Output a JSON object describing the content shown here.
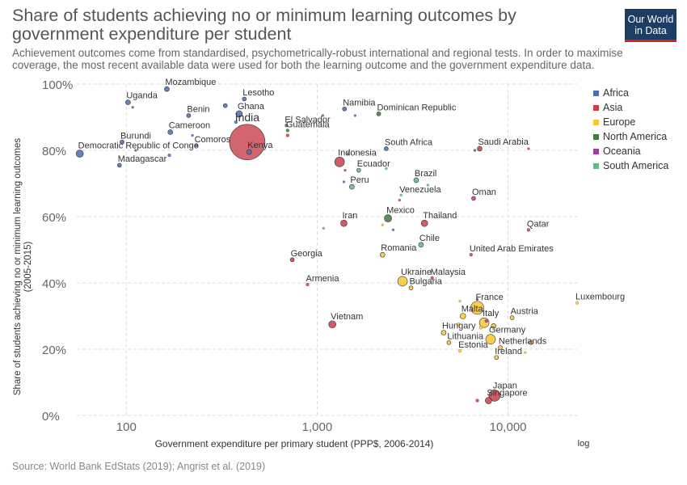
{
  "title": "Share of students achieving no or minimum learning outcomes by government expenditure per student",
  "subtitle": "Achievement outcomes come from standardised, psychometrically-robust international and regional tests. In order to maximise coverage, the most recent available data were used for both the learning outcome and the government expenditure data.",
  "logo": {
    "line1": "Our World",
    "line2": "in Data"
  },
  "source": "Source: World Bank EdStats (2019); Angrist et al. (2019)",
  "colors": {
    "Africa": "#4c6db3",
    "Asia": "#c83f4b",
    "Europe": "#f9c631",
    "North America": "#3e7c3e",
    "Oceania": "#a23aa0",
    "South America": "#5cbd8b"
  },
  "chart_data": {
    "type": "scatter",
    "xlabel": "Government expenditure per primary student (PPP$, 2006-2014)",
    "ylabel_line1": "Share of students achieving no or minimum learning outcomes",
    "ylabel_line2": "(2005-2015)",
    "x_scale": "log",
    "x_scale_label": "log",
    "xlim": [
      55,
      23000
    ],
    "ylim": [
      0,
      100
    ],
    "x_ticks": [
      {
        "v": 100,
        "label": "100"
      },
      {
        "v": 1000,
        "label": "1,000"
      },
      {
        "v": 10000,
        "label": "10,000"
      }
    ],
    "y_ticks": [
      {
        "v": 0,
        "label": "0%"
      },
      {
        "v": 20,
        "label": "20%"
      },
      {
        "v": 40,
        "label": "40%"
      },
      {
        "v": 60,
        "label": "60%"
      },
      {
        "v": 80,
        "label": "80%"
      },
      {
        "v": 100,
        "label": "100%"
      }
    ],
    "grid": true,
    "legend_position": "right",
    "legend": [
      "Africa",
      "Asia",
      "Europe",
      "North America",
      "Oceania",
      "South America"
    ],
    "points": [
      {
        "label": "Mozambique",
        "x": 163,
        "y": 98.5,
        "region": "Africa",
        "r": 3
      },
      {
        "label": "Uganda",
        "x": 102,
        "y": 94.5,
        "region": "Africa",
        "r": 3
      },
      {
        "label": "",
        "x": 108,
        "y": 93,
        "region": "Africa",
        "r": 1.5
      },
      {
        "label": "Lesotho",
        "x": 415,
        "y": 95.5,
        "region": "Africa",
        "r": 2.5
      },
      {
        "label": "Benin",
        "x": 212,
        "y": 90.5,
        "region": "Africa",
        "r": 2.5
      },
      {
        "label": "",
        "x": 330,
        "y": 93.5,
        "region": "Africa",
        "r": 2.5
      },
      {
        "label": "Ghana",
        "x": 390,
        "y": 91,
        "region": "Africa",
        "r": 4
      },
      {
        "label": "",
        "x": 375,
        "y": 88.5,
        "region": "Africa",
        "r": 2
      },
      {
        "label": "Cameroon",
        "x": 170,
        "y": 85.5,
        "region": "Africa",
        "r": 3
      },
      {
        "label": "",
        "x": 222,
        "y": 84.5,
        "region": "Africa",
        "r": 1.5
      },
      {
        "label": "Burundi",
        "x": 95,
        "y": 82.5,
        "region": "Africa",
        "r": 2.5
      },
      {
        "label": "Comoros",
        "x": 232,
        "y": 81.5,
        "region": "Africa",
        "r": 2
      },
      {
        "label": "",
        "x": 112,
        "y": 80,
        "region": "Africa",
        "r": 1.5
      },
      {
        "label": "Democratic Republic of Congo",
        "x": 57,
        "y": 79,
        "region": "Africa",
        "r": 4.5
      },
      {
        "label": "",
        "x": 168,
        "y": 78.5,
        "region": "Africa",
        "r": 2
      },
      {
        "label": "Madagascar",
        "x": 92,
        "y": 75.5,
        "region": "Africa",
        "r": 2.5
      },
      {
        "label": "Kenya",
        "x": 440,
        "y": 79.5,
        "region": "Africa",
        "r": 3
      },
      {
        "label": "Namibia",
        "x": 1390,
        "y": 92.5,
        "region": "Africa",
        "r": 2.5
      },
      {
        "label": "",
        "x": 1580,
        "y": 90.5,
        "region": "Africa",
        "r": 1.5
      },
      {
        "label": "",
        "x": 1070,
        "y": 90.5,
        "region": "Africa",
        "r": 1.5
      },
      {
        "label": "South Africa",
        "x": 2300,
        "y": 80.5,
        "region": "Africa",
        "r": 2.5
      },
      {
        "label": "",
        "x": 1450,
        "y": 79,
        "region": "Africa",
        "r": 1.5
      },
      {
        "label": "",
        "x": 1380,
        "y": 70.5,
        "region": "Africa",
        "r": 1.5
      },
      {
        "label": "",
        "x": 2500,
        "y": 56,
        "region": "Africa",
        "r": 1.5
      },
      {
        "label": "India",
        "x": 430,
        "y": 82.5,
        "region": "Asia",
        "r": 22
      },
      {
        "label": "Indonesia",
        "x": 1310,
        "y": 76.5,
        "region": "Asia",
        "r": 6
      },
      {
        "label": "",
        "x": 1400,
        "y": 74,
        "region": "Asia",
        "r": 1.5
      },
      {
        "label": "Saudi Arabia",
        "x": 7100,
        "y": 80.5,
        "region": "Asia",
        "r": 3
      },
      {
        "label": "",
        "x": 12800,
        "y": 80.5,
        "region": "Asia",
        "r": 1.5
      },
      {
        "label": "Oman",
        "x": 6600,
        "y": 65.5,
        "region": "Asia",
        "r": 2.5
      },
      {
        "label": "Iran",
        "x": 1380,
        "y": 58,
        "region": "Asia",
        "r": 4
      },
      {
        "label": "Thailand",
        "x": 3650,
        "y": 58,
        "region": "Asia",
        "r": 4
      },
      {
        "label": "Qatar",
        "x": 12800,
        "y": 56,
        "region": "Asia",
        "r": 2
      },
      {
        "label": "United Arab Emirates",
        "x": 6400,
        "y": 48.5,
        "region": "Asia",
        "r": 2
      },
      {
        "label": "Georgia",
        "x": 740,
        "y": 47,
        "region": "Asia",
        "r": 2.5
      },
      {
        "label": "Malaysia",
        "x": 4000,
        "y": 41.5,
        "region": "Asia",
        "r": 2
      },
      {
        "label": "Armenia",
        "x": 890,
        "y": 39.5,
        "region": "Asia",
        "r": 2
      },
      {
        "label": "Vietnam",
        "x": 1200,
        "y": 27.5,
        "region": "Asia",
        "r": 4.5
      },
      {
        "label": "Japan",
        "x": 8500,
        "y": 6,
        "region": "Asia",
        "r": 7
      },
      {
        "label": "Singapore",
        "x": 7900,
        "y": 4.5,
        "region": "Asia",
        "r": 4
      },
      {
        "label": "",
        "x": 6900,
        "y": 4.5,
        "region": "Asia",
        "r": 2
      },
      {
        "label": "",
        "x": 700,
        "y": 84.5,
        "region": "Asia",
        "r": 2
      },
      {
        "label": "Romania",
        "x": 2200,
        "y": 48.5,
        "region": "Europe",
        "r": 3
      },
      {
        "label": "",
        "x": 2200,
        "y": 57.5,
        "region": "Europe",
        "r": 1.5
      },
      {
        "label": "Ukraine",
        "x": 2800,
        "y": 40.5,
        "region": "Europe",
        "r": 6
      },
      {
        "label": "Bulgaria",
        "x": 3100,
        "y": 38.5,
        "region": "Europe",
        "r": 2.5
      },
      {
        "label": "France",
        "x": 6900,
        "y": 32.5,
        "region": "Europe",
        "r": 8
      },
      {
        "label": "",
        "x": 5600,
        "y": 34.5,
        "region": "Europe",
        "r": 1.5
      },
      {
        "label": "Luxembourg",
        "x": 23000,
        "y": 34,
        "region": "Europe",
        "r": 2
      },
      {
        "label": "Malta",
        "x": 5800,
        "y": 30,
        "region": "Europe",
        "r": 3.5
      },
      {
        "label": "Austria",
        "x": 10500,
        "y": 29.5,
        "region": "Europe",
        "r": 2.5
      },
      {
        "label": "Italy",
        "x": 7500,
        "y": 28,
        "region": "Europe",
        "r": 6
      },
      {
        "label": "",
        "x": 8400,
        "y": 27,
        "region": "Europe",
        "r": 3
      },
      {
        "label": "",
        "x": 7200,
        "y": 26.5,
        "region": "Europe",
        "r": 2
      },
      {
        "label": "Hungary",
        "x": 4600,
        "y": 25,
        "region": "Europe",
        "r": 3
      },
      {
        "label": "",
        "x": 5500,
        "y": 27.5,
        "region": "Europe",
        "r": 2
      },
      {
        "label": "Germany",
        "x": 8100,
        "y": 23,
        "region": "Europe",
        "r": 6
      },
      {
        "label": "Lithuania",
        "x": 4900,
        "y": 22,
        "region": "Europe",
        "r": 2.5
      },
      {
        "label": "Netherlands",
        "x": 9100,
        "y": 20.5,
        "region": "Europe",
        "r": 2.5
      },
      {
        "label": "",
        "x": 13200,
        "y": 22,
        "region": "Europe",
        "r": 2.5
      },
      {
        "label": "Estonia",
        "x": 5600,
        "y": 19.5,
        "region": "Europe",
        "r": 2
      },
      {
        "label": "Ireland",
        "x": 8700,
        "y": 17.5,
        "region": "Europe",
        "r": 2.5
      },
      {
        "label": "",
        "x": 12300,
        "y": 19,
        "region": "Europe",
        "r": 1.5
      },
      {
        "label": "El Salvador",
        "x": 690,
        "y": 87.5,
        "region": "North America",
        "r": 2
      },
      {
        "label": "Guatemala",
        "x": 700,
        "y": 86,
        "region": "North America",
        "r": 2
      },
      {
        "label": "Dominican Republic",
        "x": 2100,
        "y": 91,
        "region": "North America",
        "r": 2.5
      },
      {
        "label": "Mexico",
        "x": 2350,
        "y": 59.5,
        "region": "North America",
        "r": 4.5
      },
      {
        "label": "",
        "x": 6700,
        "y": 80,
        "region": "North America",
        "r": 1.5
      },
      {
        "label": "",
        "x": 2700,
        "y": 65,
        "region": "Oceania",
        "r": 1.5
      },
      {
        "label": "",
        "x": 7700,
        "y": 28.5,
        "region": "Oceania",
        "r": 2
      },
      {
        "label": "",
        "x": 6900,
        "y": 35,
        "region": "Oceania",
        "r": 1.5
      },
      {
        "label": "Ecuador",
        "x": 1650,
        "y": 74,
        "region": "South America",
        "r": 2.5
      },
      {
        "label": "",
        "x": 2300,
        "y": 74.5,
        "region": "South America",
        "r": 1.5
      },
      {
        "label": "Peru",
        "x": 1520,
        "y": 69,
        "region": "South America",
        "r": 3
      },
      {
        "label": "Brazil",
        "x": 3300,
        "y": 71,
        "region": "South America",
        "r": 3
      },
      {
        "label": "",
        "x": 3800,
        "y": 69.5,
        "region": "South America",
        "r": 1.5
      },
      {
        "label": "Venezuela",
        "x": 2750,
        "y": 66.5,
        "region": "South America",
        "r": 1.5
      },
      {
        "label": "Chile",
        "x": 3500,
        "y": 51.5,
        "region": "South America",
        "r": 3
      },
      {
        "label": "",
        "x": 1080,
        "y": 56.5,
        "region": "South America",
        "r": 1.5
      }
    ]
  }
}
